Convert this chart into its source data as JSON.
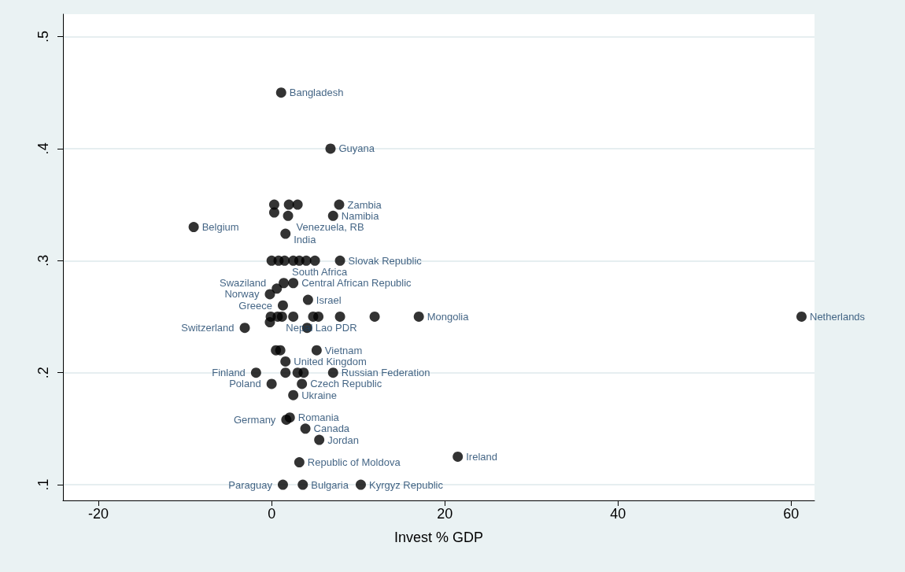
{
  "chart_data": {
    "type": "scatter",
    "xlabel": "Invest % GDP",
    "marker": "circle",
    "grid": "y",
    "xlim": [
      -24.1,
      62.7
    ],
    "xticks": [
      -20,
      0,
      20,
      40,
      60
    ],
    "ylim": [
      0.086,
      0.52
    ],
    "yticks": [
      {
        "value": 0.1,
        "label": ".1"
      },
      {
        "value": 0.2,
        "label": ".2"
      },
      {
        "value": 0.3,
        "label": ".3"
      },
      {
        "value": 0.4,
        "label": ".4"
      },
      {
        "value": 0.5,
        "label": ".5"
      }
    ],
    "series": [
      {
        "color": "#000000",
        "x": [
          1.1,
          6.8,
          0.3,
          2.0,
          3.0,
          7.8,
          0.3,
          1.9,
          7.1,
          -9.0,
          1.6,
          0.0,
          0.8,
          1.5,
          2.5,
          3.2,
          4.0,
          5.0,
          7.9,
          1.4,
          2.5,
          0.6,
          -0.2,
          4.2,
          1.3,
          -0.1,
          0.7,
          1.2,
          2.5,
          4.8,
          5.4,
          7.9,
          11.9,
          17.0,
          61.2,
          -0.2,
          4.1,
          -3.1,
          0.5,
          1.0,
          5.2,
          1.6,
          -1.8,
          1.6,
          3.0,
          3.7,
          7.1,
          0.0,
          3.5,
          2.5,
          2.1,
          1.7,
          3.9,
          5.5,
          3.2,
          21.5,
          1.3,
          3.6,
          10.3
        ],
        "values": [
          0.45,
          0.4,
          0.35,
          0.35,
          0.35,
          0.35,
          0.343,
          0.34,
          0.34,
          0.33,
          0.324,
          0.3,
          0.3,
          0.3,
          0.3,
          0.3,
          0.3,
          0.3,
          0.3,
          0.28,
          0.28,
          0.275,
          0.27,
          0.265,
          0.26,
          0.25,
          0.25,
          0.25,
          0.25,
          0.25,
          0.25,
          0.25,
          0.25,
          0.25,
          0.25,
          0.245,
          0.24,
          0.24,
          0.22,
          0.22,
          0.22,
          0.21,
          0.2,
          0.2,
          0.2,
          0.2,
          0.2,
          0.19,
          0.19,
          0.18,
          0.16,
          0.158,
          0.15,
          0.14,
          0.12,
          0.125,
          0.1,
          0.1,
          0.1
        ],
        "value_labels": [
          "Bangladesh",
          "Guyana",
          null,
          null,
          null,
          "Zambia",
          null,
          "Venezuela, RB",
          "Namibia",
          "Belgium",
          "India",
          null,
          null,
          null,
          null,
          null,
          null,
          null,
          "Slovak Republic",
          "South Africa",
          "Central African Republic",
          "Swaziland",
          "Norway",
          "Israel",
          "Greece",
          null,
          "Nepal",
          null,
          null,
          null,
          null,
          null,
          null,
          "Mongolia",
          "Netherlands",
          null,
          "Lao PDR",
          "Switzerland",
          null,
          null,
          "Vietnam",
          "United Kingdom",
          "Finland",
          null,
          null,
          null,
          "Russian Federation",
          "Poland",
          "Czech Republic",
          "Ukraine",
          "Romania",
          "Germany",
          "Canada",
          "Jordan",
          "Republic of Moldova",
          "Ireland",
          "Paraguay",
          "Bulgaria",
          "Kyrgyz Republic"
        ]
      }
    ]
  }
}
